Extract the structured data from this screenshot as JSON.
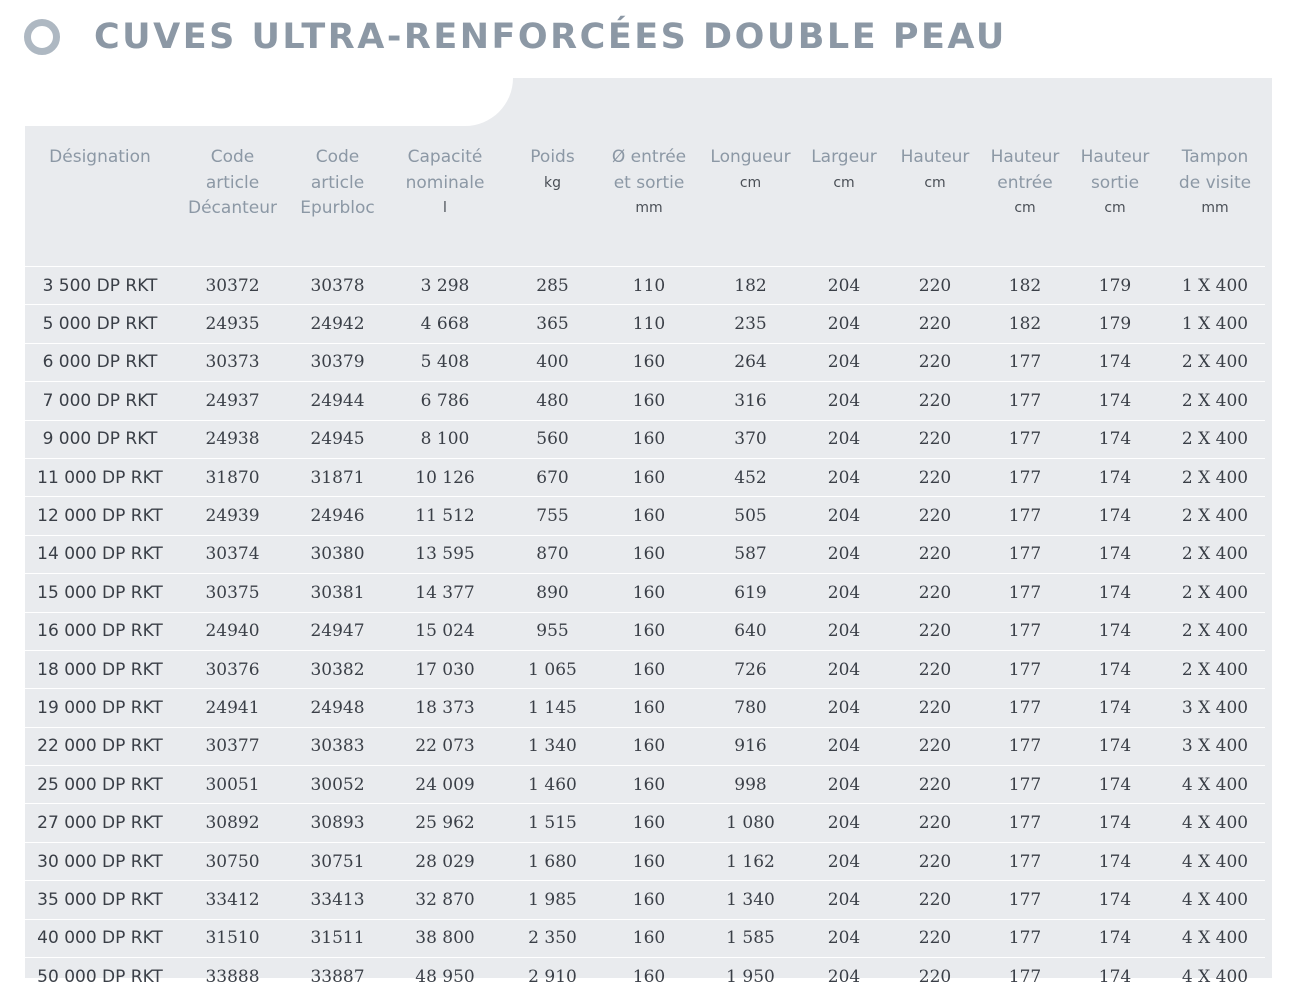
{
  "title": "CUVES ULTRA-RENFORCÉES DOUBLE PEAU",
  "columns": [
    {
      "label": [
        "Désignation"
      ],
      "unit": ""
    },
    {
      "label": [
        "Code",
        "article",
        "Décanteur"
      ],
      "unit": ""
    },
    {
      "label": [
        "Code",
        "article",
        "Epurbloc"
      ],
      "unit": ""
    },
    {
      "label": [
        "Capacité",
        "nominale"
      ],
      "unit": "l"
    },
    {
      "label": [
        "Poids"
      ],
      "unit": "kg"
    },
    {
      "label": [
        "Ø entrée",
        "et sortie"
      ],
      "unit": "mm"
    },
    {
      "label": [
        "Longueur"
      ],
      "unit": "cm"
    },
    {
      "label": [
        "Largeur"
      ],
      "unit": "cm"
    },
    {
      "label": [
        "Hauteur"
      ],
      "unit": "cm"
    },
    {
      "label": [
        "Hauteur",
        "entrée"
      ],
      "unit": "cm"
    },
    {
      "label": [
        "Hauteur",
        "sortie"
      ],
      "unit": "cm"
    },
    {
      "label": [
        "Tampon",
        "de visite"
      ],
      "unit": "mm"
    }
  ],
  "rows": [
    [
      "3 500 DP RKT",
      "30372",
      "30378",
      "3 298",
      "285",
      "110",
      "182",
      "204",
      "220",
      "182",
      "179",
      "1 X 400"
    ],
    [
      "5 000 DP RKT",
      "24935",
      "24942",
      "4 668",
      "365",
      "110",
      "235",
      "204",
      "220",
      "182",
      "179",
      "1 X 400"
    ],
    [
      "6 000 DP RKT",
      "30373",
      "30379",
      "5 408",
      "400",
      "160",
      "264",
      "204",
      "220",
      "177",
      "174",
      "2 X 400"
    ],
    [
      "7 000 DP RKT",
      "24937",
      "24944",
      "6 786",
      "480",
      "160",
      "316",
      "204",
      "220",
      "177",
      "174",
      "2 X 400"
    ],
    [
      "9 000 DP RKT",
      "24938",
      "24945",
      "8 100",
      "560",
      "160",
      "370",
      "204",
      "220",
      "177",
      "174",
      "2 X 400"
    ],
    [
      "11 000 DP RKT",
      "31870",
      "31871",
      "10 126",
      "670",
      "160",
      "452",
      "204",
      "220",
      "177",
      "174",
      "2 X 400"
    ],
    [
      "12 000 DP RKT",
      "24939",
      "24946",
      "11 512",
      "755",
      "160",
      "505",
      "204",
      "220",
      "177",
      "174",
      "2 X 400"
    ],
    [
      "14 000 DP RKT",
      "30374",
      "30380",
      "13 595",
      "870",
      "160",
      "587",
      "204",
      "220",
      "177",
      "174",
      "2 X 400"
    ],
    [
      "15 000 DP RKT",
      "30375",
      "30381",
      "14 377",
      "890",
      "160",
      "619",
      "204",
      "220",
      "177",
      "174",
      "2 X 400"
    ],
    [
      "16 000 DP RKT",
      "24940",
      "24947",
      "15 024",
      "955",
      "160",
      "640",
      "204",
      "220",
      "177",
      "174",
      "2 X 400"
    ],
    [
      "18 000 DP RKT",
      "30376",
      "30382",
      "17 030",
      "1 065",
      "160",
      "726",
      "204",
      "220",
      "177",
      "174",
      "2 X 400"
    ],
    [
      "19 000 DP RKT",
      "24941",
      "24948",
      "18 373",
      "1 145",
      "160",
      "780",
      "204",
      "220",
      "177",
      "174",
      "3 X 400"
    ],
    [
      "22 000 DP RKT",
      "30377",
      "30383",
      "22 073",
      "1 340",
      "160",
      "916",
      "204",
      "220",
      "177",
      "174",
      "3 X 400"
    ],
    [
      "25 000 DP RKT",
      "30051",
      "30052",
      "24 009",
      "1 460",
      "160",
      "998",
      "204",
      "220",
      "177",
      "174",
      "4 X 400"
    ],
    [
      "27 000 DP RKT",
      "30892",
      "30893",
      "25 962",
      "1 515",
      "160",
      "1 080",
      "204",
      "220",
      "177",
      "174",
      "4 X 400"
    ],
    [
      "30 000 DP RKT",
      "30750",
      "30751",
      "28 029",
      "1 680",
      "160",
      "1 162",
      "204",
      "220",
      "177",
      "174",
      "4 X 400"
    ],
    [
      "35 000 DP RKT",
      "33412",
      "33413",
      "32 870",
      "1 985",
      "160",
      "1 340",
      "204",
      "220",
      "177",
      "174",
      "4 X 400"
    ],
    [
      "40 000 DP RKT",
      "31510",
      "31511",
      "38 800",
      "2 350",
      "160",
      "1 585",
      "204",
      "220",
      "177",
      "174",
      "4 X 400"
    ],
    [
      "50 000 DP RKT",
      "33888",
      "33887",
      "48 950",
      "2 910",
      "160",
      "1 950",
      "204",
      "220",
      "177",
      "174",
      "4 X 400"
    ]
  ]
}
